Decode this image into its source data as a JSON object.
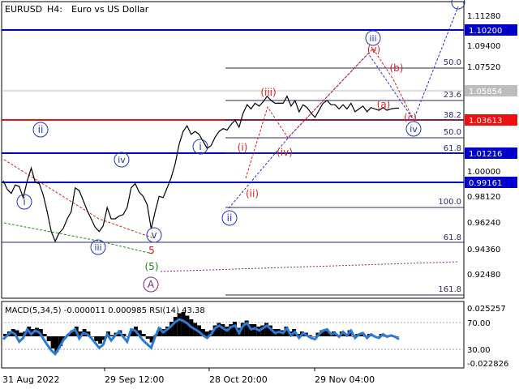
{
  "header": {
    "symbol": "EURUSD",
    "timeframe": "H4:",
    "description": "Euro vs US Dollar"
  },
  "chart_data": {
    "type": "line",
    "title": "EURUSD, H4:  Euro vs US Dollar",
    "price_axis": {
      "ylim": [
        0.9248,
        1.133
      ],
      "ticks": [
        "1.11280",
        "1.09400",
        "1.07520",
        "1.05854",
        "1.03613",
        "1.01216",
        "1.00000",
        "0.98120",
        "0.96240",
        "0.94360",
        "0.92480"
      ]
    },
    "x_tick_labels": [
      "31 Aug 2022",
      "29 Sep 12:00",
      "28 Oct 20:00",
      "29 Nov 04:00"
    ],
    "price_series": {
      "name": "EURUSD",
      "x": [
        0,
        2,
        4,
        6,
        8,
        10,
        12,
        14,
        16,
        18,
        20,
        22,
        24,
        26,
        28,
        30,
        32,
        34,
        36,
        38,
        40,
        42,
        44,
        46,
        48,
        50,
        52,
        54,
        56,
        58,
        60,
        62,
        64,
        66,
        68,
        70,
        72,
        74,
        76,
        78,
        80,
        82,
        84,
        86,
        88,
        90,
        92,
        94,
        96,
        98,
        100,
        102,
        104,
        106,
        108,
        110,
        112,
        114,
        116,
        118,
        120,
        122,
        124,
        126,
        128,
        130,
        132,
        134,
        136,
        138,
        140,
        142,
        144,
        146,
        148,
        150,
        152,
        154,
        156,
        158,
        160,
        162,
        164,
        166,
        168,
        170,
        172,
        174,
        176,
        178,
        180,
        182,
        184,
        186,
        188,
        190,
        192,
        194,
        196,
        198
      ],
      "y": [
        1.007,
        1.001,
        0.998,
        1.004,
        1.003,
        0.995,
        1.007,
        1.016,
        1.006,
        1.005,
        0.997,
        0.985,
        0.971,
        0.964,
        0.97,
        0.973,
        0.98,
        0.985,
        1.002,
        1.0,
        0.993,
        0.986,
        0.98,
        0.974,
        0.971,
        0.975,
        0.988,
        0.98,
        0.98,
        0.982,
        0.983,
        0.988,
        1.002,
        1.005,
        0.999,
        0.996,
        0.99,
        0.973,
        0.985,
        0.996,
        0.995,
        1.002,
        1.009,
        1.019,
        1.033,
        1.042,
        1.046,
        1.04,
        1.042,
        1.04,
        1.035,
        1.03,
        1.032,
        1.038,
        1.042,
        1.044,
        1.043,
        1.047,
        1.05,
        1.045,
        1.055,
        1.061,
        1.058,
        1.062,
        1.06,
        1.063,
        1.067,
        1.064,
        1.062,
        1.062,
        1.062,
        1.067,
        1.06,
        1.064,
        1.056,
        1.061,
        1.059,
        1.055,
        1.052,
        1.057,
        1.062,
        1.064,
        1.061,
        1.061,
        1.058,
        1.061,
        1.058,
        1.062,
        1.056,
        1.058,
        1.06,
        1.056,
        1.059,
        1.058,
        1.057,
        1.059,
        1.057,
        1.058,
        1.0585,
        1.0585
      ]
    },
    "price_labels": [
      {
        "text": "1.10200",
        "color": "#0000cc"
      },
      {
        "text": "1.05854",
        "color": "#bdbdbd"
      },
      {
        "text": "1.03613",
        "color": "#ee1111"
      },
      {
        "text": "1.01216",
        "color": "#0000cc"
      },
      {
        "text": "0.99161",
        "color": "#0000cc"
      }
    ],
    "fib_levels": [
      "50.0",
      "23.6",
      "38.2",
      "50.0",
      "61.8",
      "100.0",
      "61.8",
      "161.8"
    ],
    "wave_labels": [
      {
        "text": "ii",
        "color": "#2233bb",
        "circled": true
      },
      {
        "text": "i",
        "color": "#2233bb",
        "circled": true
      },
      {
        "text": "iii",
        "color": "#2233bb",
        "circled": true
      },
      {
        "text": "iv",
        "color": "#2233bb",
        "circled": true
      },
      {
        "text": "v",
        "color": "#2233bb",
        "circled": true
      },
      {
        "text": "i",
        "color": "#2233bb",
        "circled": true
      },
      {
        "text": "ii",
        "color": "#2233bb",
        "circled": true
      },
      {
        "text": "iii",
        "color": "#2233bb",
        "circled": true
      },
      {
        "text": "iv",
        "color": "#2233bb",
        "circled": true
      },
      {
        "text": "5",
        "color": "#cc2222",
        "circled": false
      },
      {
        "text": "(5)",
        "color": "#1a8a1a",
        "circled": false
      },
      {
        "text": "A",
        "color": "#7a2a7a",
        "circled": true
      },
      {
        "text": "(i)",
        "color": "#dd2222",
        "circled": false
      },
      {
        "text": "(ii)",
        "color": "#dd2222",
        "circled": false
      },
      {
        "text": "(iii)",
        "color": "#dd2222",
        "circled": false
      },
      {
        "text": "(iv)",
        "color": "#dd2222",
        "circled": false
      },
      {
        "text": "(v)",
        "color": "#dd2222",
        "circled": false
      },
      {
        "text": "(a)",
        "color": "#dd2222",
        "circled": false
      },
      {
        "text": "(b)",
        "color": "#dd2222",
        "circled": false
      },
      {
        "text": "(c)",
        "color": "#dd2222",
        "circled": false
      }
    ],
    "indicator": {
      "label": "MACD(5,34,5) -0.000011 0.000985 RSI(14) 43.38",
      "ticks": [
        "0.025257",
        "70.00",
        "30.00",
        "-0.022826"
      ],
      "rsi_range": [
        0,
        100
      ],
      "rsi_series": [
        44,
        50,
        56,
        52,
        40,
        46,
        60,
        52,
        58,
        55,
        45,
        35,
        26,
        20,
        30,
        42,
        50,
        56,
        60,
        45,
        54,
        52,
        46,
        38,
        30,
        35,
        52,
        42,
        50,
        56,
        48,
        40,
        60,
        58,
        50,
        42,
        36,
        30,
        48,
        62,
        55,
        60,
        65,
        72,
        76,
        74,
        70,
        64,
        60,
        56,
        50,
        46,
        52,
        62,
        66,
        62,
        58,
        64,
        66,
        54,
        66,
        70,
        60,
        62,
        58,
        62,
        66,
        60,
        54,
        56,
        54,
        62,
        50,
        56,
        46,
        54,
        50,
        46,
        44,
        52,
        58,
        60,
        52,
        54,
        48,
        56,
        50,
        58,
        46,
        52,
        54,
        46,
        52,
        48,
        46,
        52,
        48,
        50,
        48,
        44
      ],
      "macd_hist": [
        0.002,
        0.004,
        0.006,
        0.005,
        0.003,
        0.004,
        0.008,
        0.006,
        0.007,
        0.006,
        0.002,
        -0.004,
        -0.01,
        -0.013,
        -0.008,
        -0.002,
        0.002,
        0.005,
        0.008,
        0.004,
        0.006,
        0.004,
        0.0,
        -0.004,
        -0.006,
        -0.003,
        0.004,
        0.001,
        0.003,
        0.005,
        0.002,
        0.0,
        0.006,
        0.008,
        0.005,
        0.002,
        -0.002,
        -0.005,
        0.001,
        0.007,
        0.006,
        0.008,
        0.012,
        0.016,
        0.019,
        0.02,
        0.017,
        0.014,
        0.011,
        0.009,
        0.006,
        0.004,
        0.005,
        0.009,
        0.011,
        0.01,
        0.008,
        0.01,
        0.012,
        0.007,
        0.011,
        0.013,
        0.01,
        0.01,
        0.008,
        0.009,
        0.011,
        0.009,
        0.006,
        0.006,
        0.005,
        0.008,
        0.004,
        0.006,
        0.002,
        0.004,
        0.003,
        0.001,
        0.0,
        0.003,
        0.005,
        0.006,
        0.003,
        0.004,
        0.001,
        0.004,
        0.002,
        0.005,
        0.0,
        0.002,
        0.003,
        0.0,
        0.002,
        0.001,
        0.0,
        0.002,
        0.0,
        0.001,
        0.0,
        0.0
      ]
    }
  }
}
